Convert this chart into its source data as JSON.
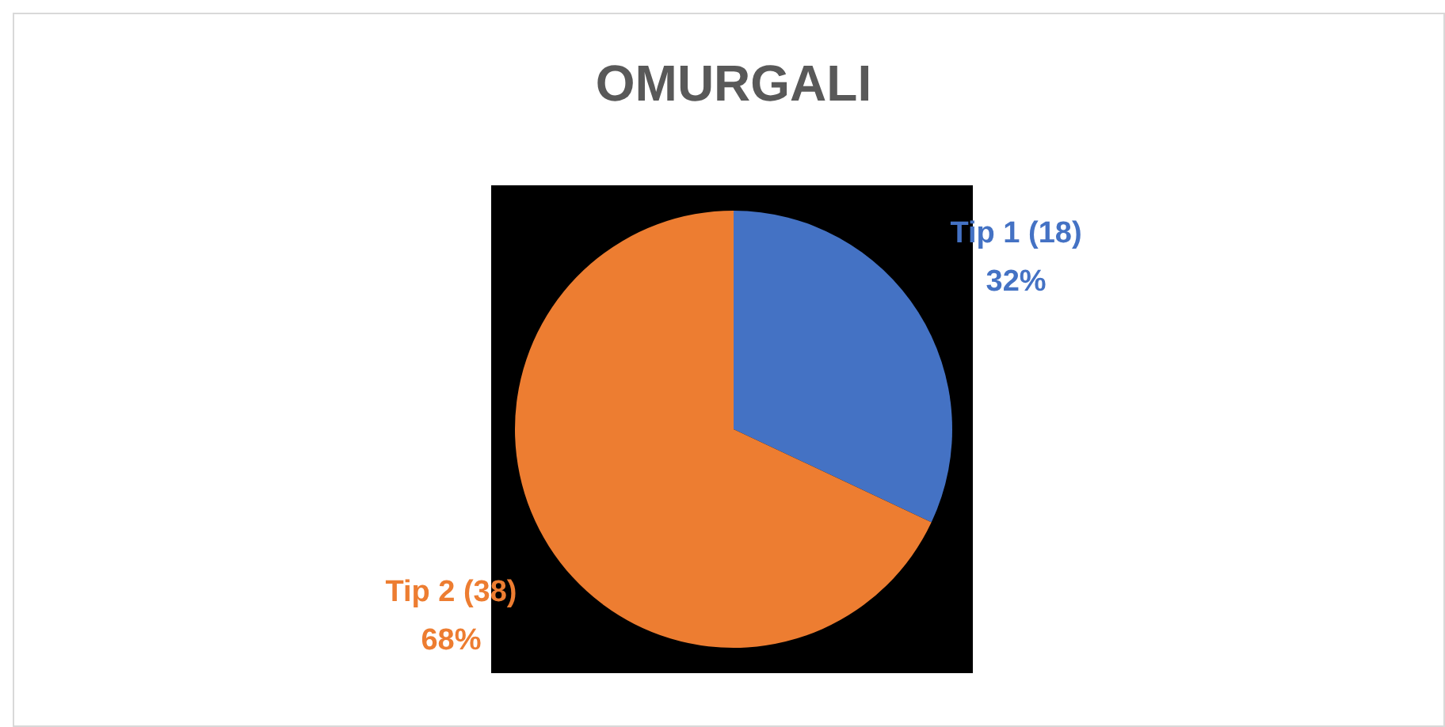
{
  "chart_data": {
    "type": "pie",
    "title": "OMURGALI",
    "categories": [
      "Tip 1 (18)",
      "Tip 2 (38)"
    ],
    "values": [
      32,
      68
    ],
    "value_labels": [
      "32%",
      "68%"
    ],
    "colors": [
      "#4472c4",
      "#ed7d31"
    ]
  }
}
